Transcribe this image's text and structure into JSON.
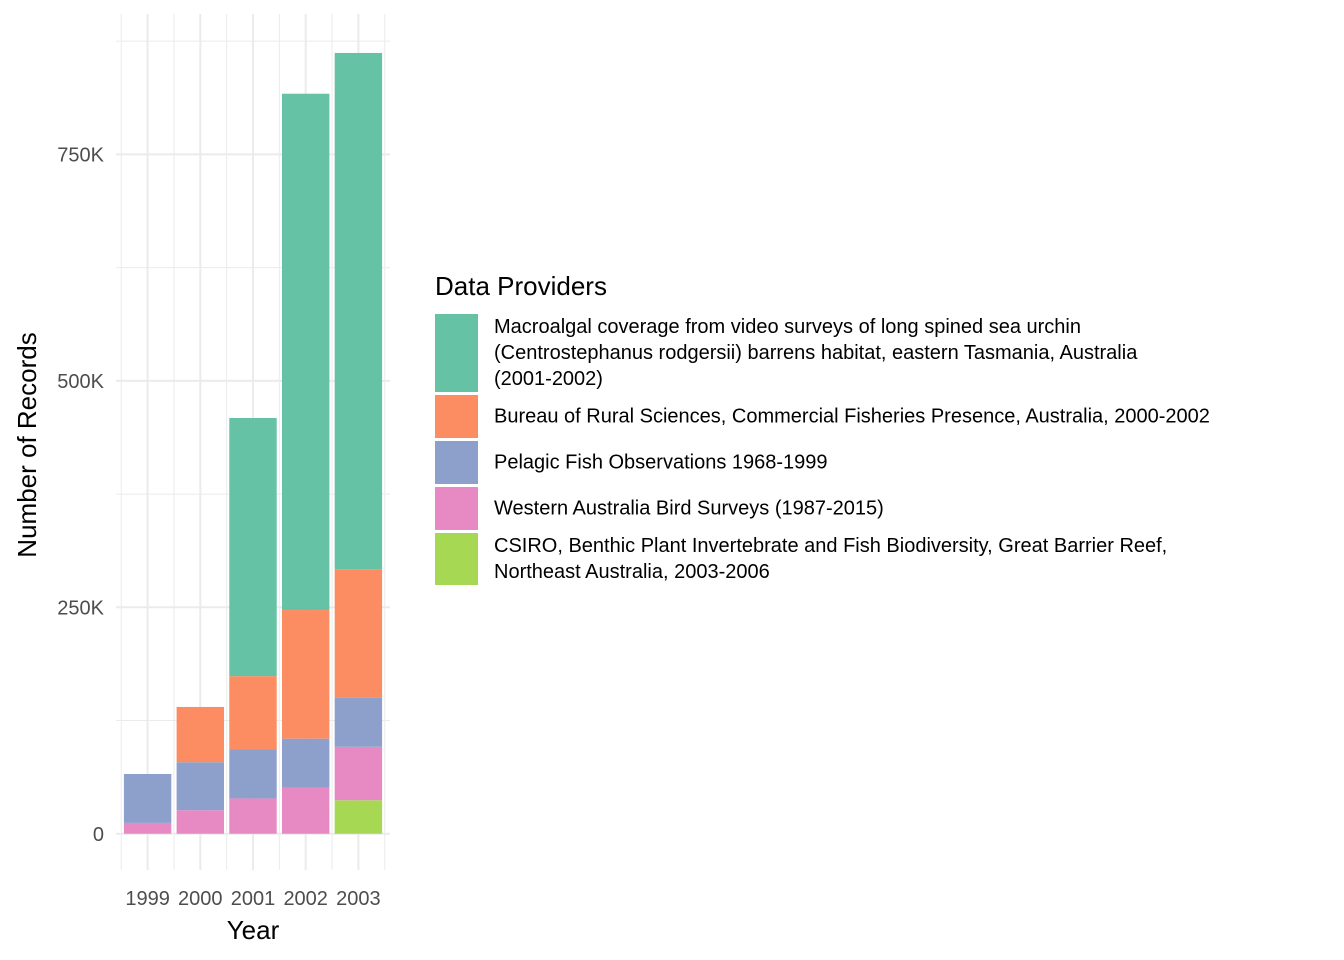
{
  "chart_data": {
    "type": "bar",
    "stacked": true,
    "title": "",
    "xlabel": "Year",
    "ylabel": "Number of Records",
    "categories": [
      "1999",
      "2000",
      "2001",
      "2002",
      "2003"
    ],
    "y_ticks": [
      {
        "value": 0,
        "label": "0"
      },
      {
        "value": 250000,
        "label": "250K"
      },
      {
        "value": 500000,
        "label": "500K"
      },
      {
        "value": 750000,
        "label": "750K"
      }
    ],
    "ylim": [
      -40000,
      905000
    ],
    "grid": true,
    "legend": {
      "title": "Data Providers",
      "placement": "right"
    },
    "series": [
      {
        "name": "CSIRO, Benthic Plant Invertebrate and Fish Biodiversity, Great Barrier Reef, Northeast Australia, 2003-2006",
        "label_lines": [
          "CSIRO, Benthic Plant Invertebrate and Fish Biodiversity, Great Barrier Reef,",
          "Northeast Australia, 2003-2006"
        ],
        "color": "#A6D854",
        "values": [
          0,
          0,
          0,
          0,
          37000
        ]
      },
      {
        "name": "Western Australia Bird Surveys (1987-2015)",
        "label_lines": [
          "Western Australia Bird Surveys (1987-2015)"
        ],
        "color": "#E78AC3",
        "values": [
          12000,
          26000,
          39000,
          51000,
          59000
        ]
      },
      {
        "name": "Pelagic Fish Observations 1968-1999",
        "label_lines": [
          "Pelagic Fish Observations 1968-1999"
        ],
        "color": "#8DA0CB",
        "values": [
          54000,
          53000,
          54000,
          54000,
          54000
        ]
      },
      {
        "name": "Bureau of Rural Sciences, Commercial Fisheries Presence, Australia, 2000-2002",
        "label_lines": [
          "Bureau of Rural Sciences, Commercial Fisheries Presence, Australia, 2000-2002"
        ],
        "color": "#FC8D62",
        "values": [
          0,
          61000,
          81000,
          142000,
          142000
        ]
      },
      {
        "name": "Macroalgal coverage from video surveys of long spined sea urchin (Centrostephanus rodgersii) barrens habitat, eastern Tasmania, Australia (2001-2002)",
        "label_lines": [
          "Macroalgal coverage from video surveys of long spined sea urchin",
          "(Centrostephanus rodgersii) barrens habitat, eastern Tasmania, Australia",
          "(2001-2002)"
        ],
        "color": "#66C2A5",
        "values": [
          0,
          0,
          285000,
          570000,
          570000
        ]
      }
    ],
    "legend_order": [
      4,
      3,
      2,
      1,
      0
    ]
  }
}
